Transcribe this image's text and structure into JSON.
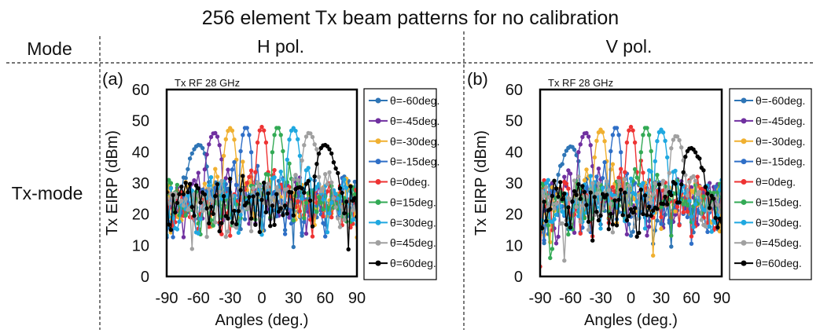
{
  "figure": {
    "title": "256 element Tx beam patterns for no calibration",
    "header_mode": "Mode",
    "header_h": "H pol.",
    "header_v": "V pol.",
    "row_label": "Tx-mode"
  },
  "chart_data": [
    {
      "type": "line",
      "panel_label": "(a)",
      "annotation": "Tx RF 28 GHz",
      "xlabel": "Angles (deg.)",
      "ylabel": "Tx EIRP (dBm)",
      "xlim": [
        -90,
        90
      ],
      "ylim": [
        0,
        60
      ],
      "xticks": [
        -90,
        -60,
        -30,
        0,
        30,
        60,
        90
      ],
      "yticks": [
        0,
        10,
        20,
        30,
        40,
        50,
        60
      ],
      "legend_position": "right",
      "series": [
        {
          "name": "θ=-60deg.",
          "color": "#2E75B6",
          "steer": -60,
          "peak": 44
        },
        {
          "name": "θ=-45deg.",
          "color": "#7030A0",
          "steer": -45,
          "peak": 47
        },
        {
          "name": "θ=-30deg.",
          "color": "#F0B030",
          "steer": -30,
          "peak": 48
        },
        {
          "name": "θ=-15deg.",
          "color": "#2F6FC7",
          "steer": -15,
          "peak": 48
        },
        {
          "name": "θ=0deg.",
          "color": "#EE3333",
          "steer": 0,
          "peak": 48
        },
        {
          "name": "θ=15deg.",
          "color": "#33AA55",
          "steer": 15,
          "peak": 48
        },
        {
          "name": "θ=30deg.",
          "color": "#1FA8E0",
          "steer": 30,
          "peak": 48
        },
        {
          "name": "θ=45deg.",
          "color": "#A0A0A0",
          "steer": 45,
          "peak": 47
        },
        {
          "name": "θ=60deg.",
          "color": "#000000",
          "steer": 60,
          "peak": 44
        }
      ]
    },
    {
      "type": "line",
      "panel_label": "(b)",
      "annotation": "Tx RF 28 GHz",
      "xlabel": "Angles (deg.)",
      "ylabel": "Tx EIRP (dBm)",
      "xlim": [
        -90,
        90
      ],
      "ylim": [
        0,
        60
      ],
      "xticks": [
        -90,
        -60,
        -30,
        0,
        30,
        60,
        90
      ],
      "yticks": [
        0,
        10,
        20,
        30,
        40,
        50,
        60
      ],
      "legend_position": "right",
      "series": [
        {
          "name": "θ=-60deg.",
          "color": "#2E75B6",
          "steer": -60,
          "peak": 43.5
        },
        {
          "name": "θ=-45deg.",
          "color": "#7030A0",
          "steer": -45,
          "peak": 47
        },
        {
          "name": "θ=-30deg.",
          "color": "#F0B030",
          "steer": -30,
          "peak": 47.5
        },
        {
          "name": "θ=-15deg.",
          "color": "#2F6FC7",
          "steer": -15,
          "peak": 48
        },
        {
          "name": "θ=0deg.",
          "color": "#EE3333",
          "steer": 0,
          "peak": 48
        },
        {
          "name": "θ=15deg.",
          "color": "#33AA55",
          "steer": 15,
          "peak": 48
        },
        {
          "name": "θ=30deg.",
          "color": "#1FA8E0",
          "steer": 30,
          "peak": 47.5
        },
        {
          "name": "θ=45deg.",
          "color": "#A0A0A0",
          "steer": 45,
          "peak": 46
        },
        {
          "name": "θ=60deg.",
          "color": "#000000",
          "steer": 60,
          "peak": 43
        }
      ]
    }
  ]
}
